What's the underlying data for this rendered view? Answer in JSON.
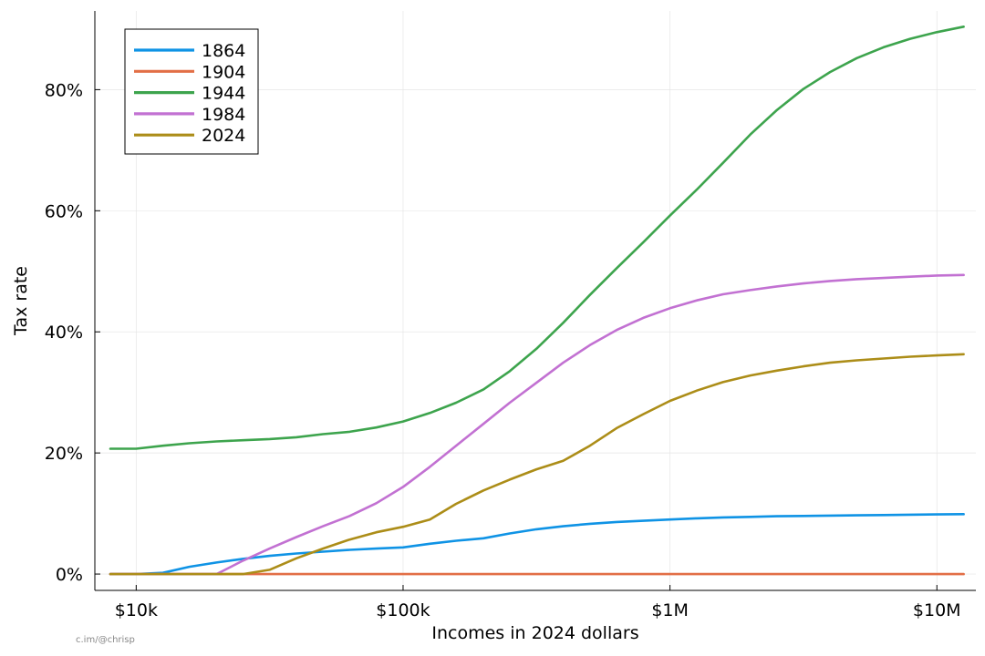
{
  "credit": "c.im/@chrisp",
  "chart_data": {
    "type": "line",
    "title": "",
    "xlabel": "Incomes in 2024 dollars",
    "ylabel": "Tax rate",
    "x_scale": "log",
    "xlim": [
      7000,
      14000000
    ],
    "ylim": [
      -0.027,
      0.93
    ],
    "x_ticks": [
      {
        "value": 10000,
        "label": "$10k"
      },
      {
        "value": 100000,
        "label": "$100k"
      },
      {
        "value": 1000000,
        "label": "$1M"
      },
      {
        "value": 10000000,
        "label": "$10M"
      }
    ],
    "y_ticks": [
      {
        "value": 0,
        "label": "0%"
      },
      {
        "value": 0.2,
        "label": "20%"
      },
      {
        "value": 0.4,
        "label": "40%"
      },
      {
        "value": 0.6,
        "label": "60%"
      },
      {
        "value": 0.8,
        "label": "80%"
      }
    ],
    "grid": true,
    "legend_position": "top-left",
    "x": [
      8000,
      10000,
      12600,
      15800,
      20000,
      25100,
      31600,
      39800,
      50100,
      63100,
      79400,
      100000,
      126000,
      158000,
      200000,
      251000,
      316000,
      398000,
      501000,
      631000,
      794000,
      1000000,
      1260000,
      1580000,
      2000000,
      2510000,
      3160000,
      3980000,
      5010000,
      6310000,
      7940000,
      10000000,
      12600000
    ],
    "series": [
      {
        "name": "1864",
        "color": "#0f93e5",
        "values": [
          0,
          0,
          0.002,
          0.012,
          0.019,
          0.025,
          0.03,
          0.034,
          0.037,
          0.04,
          0.042,
          0.044,
          0.05,
          0.055,
          0.059,
          0.067,
          0.074,
          0.079,
          0.083,
          0.086,
          0.088,
          0.09,
          0.092,
          0.0935,
          0.0945,
          0.0955,
          0.096,
          0.0965,
          0.097,
          0.0975,
          0.098,
          0.0985,
          0.099
        ]
      },
      {
        "name": "1904",
        "color": "#e26f46",
        "values": [
          0,
          0,
          0,
          0,
          0,
          0,
          0,
          0,
          0,
          0,
          0,
          0,
          0,
          0,
          0,
          0,
          0,
          0,
          0,
          0,
          0,
          0,
          0,
          0,
          0,
          0,
          0,
          0,
          0,
          0,
          0,
          0,
          0
        ]
      },
      {
        "name": "1944",
        "color": "#3da44d",
        "values": [
          0.207,
          0.207,
          0.212,
          0.216,
          0.219,
          0.221,
          0.223,
          0.226,
          0.231,
          0.235,
          0.242,
          0.252,
          0.266,
          0.283,
          0.305,
          0.335,
          0.372,
          0.415,
          0.461,
          0.505,
          0.548,
          0.592,
          0.635,
          0.679,
          0.726,
          0.766,
          0.801,
          0.829,
          0.852,
          0.87,
          0.884,
          0.895,
          0.904
        ]
      },
      {
        "name": "1984",
        "color": "#c271d2",
        "values": [
          0,
          0,
          0,
          0,
          0,
          0.022,
          0.042,
          0.061,
          0.079,
          0.096,
          0.117,
          0.144,
          0.177,
          0.212,
          0.248,
          0.283,
          0.316,
          0.349,
          0.378,
          0.403,
          0.423,
          0.439,
          0.452,
          0.462,
          0.469,
          0.475,
          0.48,
          0.484,
          0.487,
          0.489,
          0.491,
          0.493,
          0.494
        ]
      },
      {
        "name": "2024",
        "color": "#ac8d18",
        "values": [
          0,
          0,
          0,
          0,
          0,
          0,
          0.007,
          0.026,
          0.042,
          0.057,
          0.069,
          0.078,
          0.09,
          0.116,
          0.138,
          0.156,
          0.173,
          0.187,
          0.212,
          0.241,
          0.264,
          0.286,
          0.303,
          0.317,
          0.328,
          0.336,
          0.343,
          0.349,
          0.353,
          0.356,
          0.359,
          0.361,
          0.363
        ]
      }
    ]
  }
}
